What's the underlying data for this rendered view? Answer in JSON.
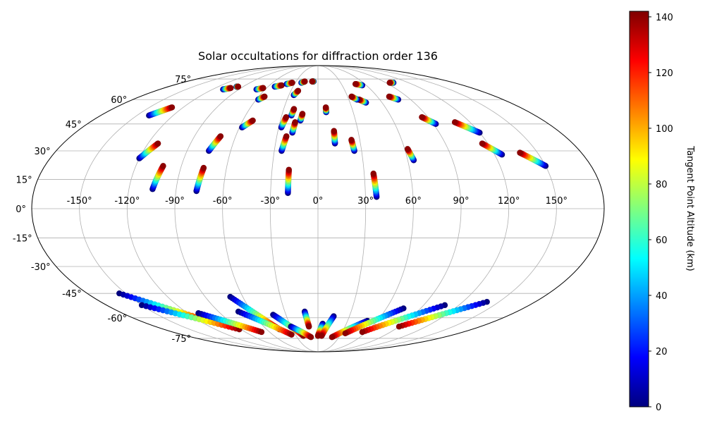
{
  "chart_data": {
    "type": "scatter",
    "projection": "mollweide",
    "title": "Solar occultations for diffraction order 136",
    "xlabel": "",
    "ylabel": "",
    "grid": true,
    "xlim": [
      -180,
      180
    ],
    "ylim": [
      -90,
      90
    ],
    "longitude_ticks": [
      -150,
      -120,
      -90,
      -60,
      -30,
      0,
      30,
      60,
      90,
      120,
      150
    ],
    "longitude_tick_labels": [
      "-150°",
      "-120°",
      "-90°",
      "-60°",
      "-30°",
      "0°",
      "30°",
      "60°",
      "90°",
      "120°",
      "150°"
    ],
    "latitude_ticks": [
      -75,
      -60,
      -45,
      -30,
      -15,
      0,
      15,
      30,
      45,
      60,
      75
    ],
    "latitude_tick_labels": [
      "-75°",
      "-60°",
      "-45°",
      "-30°",
      "-15°",
      "0°",
      "15°",
      "30°",
      "45°",
      "60°",
      "75°"
    ],
    "colorbar": {
      "label": "Tangent Point Altitude (km)",
      "colormap": "jet",
      "range": [
        0,
        142
      ],
      "ticks": [
        0,
        20,
        40,
        60,
        80,
        100,
        120,
        140
      ],
      "tick_labels": [
        "0",
        "20",
        "40",
        "60",
        "80",
        "100",
        "120",
        "140"
      ],
      "colormap_stops": [
        "#00007f",
        "#0000ff",
        "#007fff",
        "#00ffff",
        "#7fff7f",
        "#ffff00",
        "#ff7f00",
        "#ff0000",
        "#7f0000"
      ]
    },
    "tracks": [
      {
        "lon_start": -105,
        "lat_start": 10,
        "lon_end": -102,
        "lat_end": 22,
        "alt_start": 0,
        "alt_end": 140
      },
      {
        "lon_start": -77,
        "lat_start": 9,
        "lon_end": -75,
        "lat_end": 21,
        "alt_start": 0,
        "alt_end": 140
      },
      {
        "lon_start": -19,
        "lat_start": 8,
        "lon_end": -19,
        "lat_end": 20,
        "alt_start": 0,
        "alt_end": 140
      },
      {
        "lon_start": 37,
        "lat_start": 6,
        "lon_end": 36,
        "lat_end": 18,
        "alt_start": 0,
        "alt_end": 140
      },
      {
        "lon_start": -120,
        "lat_start": 26,
        "lon_end": -113,
        "lat_end": 34,
        "alt_start": 0,
        "alt_end": 140
      },
      {
        "lon_start": -75,
        "lat_start": 30,
        "lon_end": -71,
        "lat_end": 38,
        "alt_start": 0,
        "alt_end": 140
      },
      {
        "lon_start": -25,
        "lat_start": 30,
        "lon_end": -23,
        "lat_end": 38,
        "alt_start": 0,
        "alt_end": 140
      },
      {
        "lon_start": 12,
        "lat_start": 34,
        "lon_end": 12,
        "lat_end": 41,
        "alt_start": 0,
        "alt_end": 140
      },
      {
        "lon_start": 25,
        "lat_start": 30,
        "lon_end": 24,
        "lat_end": 36,
        "alt_start": 0,
        "alt_end": 140
      },
      {
        "lon_start": 64,
        "lat_start": 25,
        "lon_end": 62,
        "lat_end": 31,
        "alt_start": 0,
        "alt_end": 140
      },
      {
        "lon_start": 125,
        "lat_start": 28,
        "lon_end": 116,
        "lat_end": 34,
        "alt_start": 0,
        "alt_end": 140
      },
      {
        "lon_start": 150,
        "lat_start": 22,
        "lon_end": 138,
        "lat_end": 29,
        "alt_start": 0,
        "alt_end": 140
      },
      {
        "lon_start": -58,
        "lat_start": 43,
        "lon_end": -52,
        "lat_end": 47,
        "alt_start": 0,
        "alt_end": 140
      },
      {
        "lon_start": -28,
        "lat_start": 43,
        "lon_end": -26,
        "lat_end": 49,
        "alt_start": 0,
        "alt_end": 140
      },
      {
        "lon_start": -19,
        "lat_start": 40,
        "lon_end": -18,
        "lat_end": 46,
        "alt_start": 0,
        "alt_end": 140
      },
      {
        "lon_start": -14,
        "lat_start": 47,
        "lon_end": -13,
        "lat_end": 51,
        "alt_start": 0,
        "alt_end": 140
      },
      {
        "lon_start": -22,
        "lat_start": 50,
        "lon_end": -21,
        "lat_end": 54,
        "alt_start": 0,
        "alt_end": 140
      },
      {
        "lon_start": 7,
        "lat_start": 52,
        "lon_end": 7,
        "lat_end": 55,
        "alt_start": 0,
        "alt_end": 140
      },
      {
        "lon_start": 92,
        "lat_start": 45,
        "lon_end": 85,
        "lat_end": 49,
        "alt_start": 0,
        "alt_end": 140
      },
      {
        "lon_start": 120,
        "lat_start": 40,
        "lon_end": 108,
        "lat_end": 46,
        "alt_start": 0,
        "alt_end": 140
      },
      {
        "lon_start": -140,
        "lat_start": 50,
        "lon_end": -130,
        "lat_end": 55,
        "alt_start": 0,
        "alt_end": 140
      },
      {
        "lon_start": -58,
        "lat_start": 60,
        "lon_end": -54,
        "lat_end": 62,
        "alt_start": 0,
        "alt_end": 140
      },
      {
        "lon_start": -25,
        "lat_start": 63,
        "lon_end": -22,
        "lat_end": 66,
        "alt_start": 0,
        "alt_end": 140
      },
      {
        "lon_start": 45,
        "lat_start": 58,
        "lon_end": 40,
        "lat_end": 60,
        "alt_start": 0,
        "alt_end": 140
      },
      {
        "lon_start": 38,
        "lat_start": 60,
        "lon_end": 34,
        "lat_end": 62,
        "alt_start": 0,
        "alt_end": 140
      },
      {
        "lon_start": 78,
        "lat_start": 60,
        "lon_end": 72,
        "lat_end": 62,
        "alt_start": 0,
        "alt_end": 140
      },
      {
        "lon_start": -108,
        "lat_start": 67,
        "lon_end": -102,
        "lat_end": 68,
        "alt_start": 0,
        "alt_end": 140
      },
      {
        "lon_start": -98,
        "lat_start": 69,
        "lon_end": -96,
        "lat_end": 69,
        "alt_start": 0,
        "alt_end": 140
      },
      {
        "lon_start": -70,
        "lat_start": 67,
        "lon_end": -64,
        "lat_end": 68,
        "alt_start": 0,
        "alt_end": 140
      },
      {
        "lon_start": -52,
        "lat_start": 69,
        "lon_end": -45,
        "lat_end": 70,
        "alt_start": 0,
        "alt_end": 140
      },
      {
        "lon_start": -40,
        "lat_start": 71,
        "lon_end": -34,
        "lat_end": 72,
        "alt_start": 0,
        "alt_end": 140
      },
      {
        "lon_start": -22,
        "lat_start": 72,
        "lon_end": -18,
        "lat_end": 73,
        "alt_start": 0,
        "alt_end": 140
      },
      {
        "lon_start": -6,
        "lat_start": 73,
        "lon_end": -8,
        "lat_end": 73,
        "alt_start": 0,
        "alt_end": 140
      },
      {
        "lon_start": 55,
        "lat_start": 70,
        "lon_end": 48,
        "lat_end": 71,
        "alt_start": 0,
        "alt_end": 140
      },
      {
        "lon_start": 100,
        "lat_start": 72,
        "lon_end": 95,
        "lat_end": 72,
        "alt_start": 0,
        "alt_end": 140
      },
      {
        "lon_start": -155,
        "lat_start": -45,
        "lon_end": -108,
        "lat_end": -63,
        "alt_start": 0,
        "alt_end": 140
      },
      {
        "lon_start": -150,
        "lat_start": -52,
        "lon_end": -92,
        "lat_end": -68,
        "alt_start": 0,
        "alt_end": 140
      },
      {
        "lon_start": -110,
        "lat_start": -57,
        "lon_end": -70,
        "lat_end": -70,
        "alt_start": 0,
        "alt_end": 140
      },
      {
        "lon_start": -70,
        "lat_start": -47,
        "lon_end": -45,
        "lat_end": -68,
        "alt_start": 0,
        "alt_end": 140
      },
      {
        "lon_start": -72,
        "lat_start": -56,
        "lon_end": -35,
        "lat_end": -72,
        "alt_start": 0,
        "alt_end": 140
      },
      {
        "lon_start": -42,
        "lat_start": -58,
        "lon_end": -20,
        "lat_end": -73,
        "alt_start": 0,
        "alt_end": 140
      },
      {
        "lon_start": -30,
        "lat_start": -66,
        "lon_end": -10,
        "lat_end": -74,
        "alt_start": 0,
        "alt_end": 140
      },
      {
        "lon_start": -12,
        "lat_start": -56,
        "lon_end": -10,
        "lat_end": -66,
        "alt_start": 0,
        "alt_end": 140
      },
      {
        "lon_start": 5,
        "lat_start": -64,
        "lon_end": 0,
        "lat_end": -73,
        "alt_start": 0,
        "alt_end": 140
      },
      {
        "lon_start": 15,
        "lat_start": -59,
        "lon_end": 5,
        "lat_end": -73,
        "alt_start": 0,
        "alt_end": 140
      },
      {
        "lon_start": 50,
        "lat_start": -62,
        "lon_end": 20,
        "lat_end": -74,
        "alt_start": 0,
        "alt_end": 140
      },
      {
        "lon_start": 75,
        "lat_start": -54,
        "lon_end": 35,
        "lat_end": -71,
        "alt_start": 0,
        "alt_end": 140
      },
      {
        "lon_start": 108,
        "lat_start": -52,
        "lon_end": 55,
        "lat_end": -70,
        "alt_start": 0,
        "alt_end": 140
      },
      {
        "lon_start": 140,
        "lat_start": -50,
        "lon_end": 90,
        "lat_end": -66,
        "alt_start": 0,
        "alt_end": 140
      }
    ]
  }
}
